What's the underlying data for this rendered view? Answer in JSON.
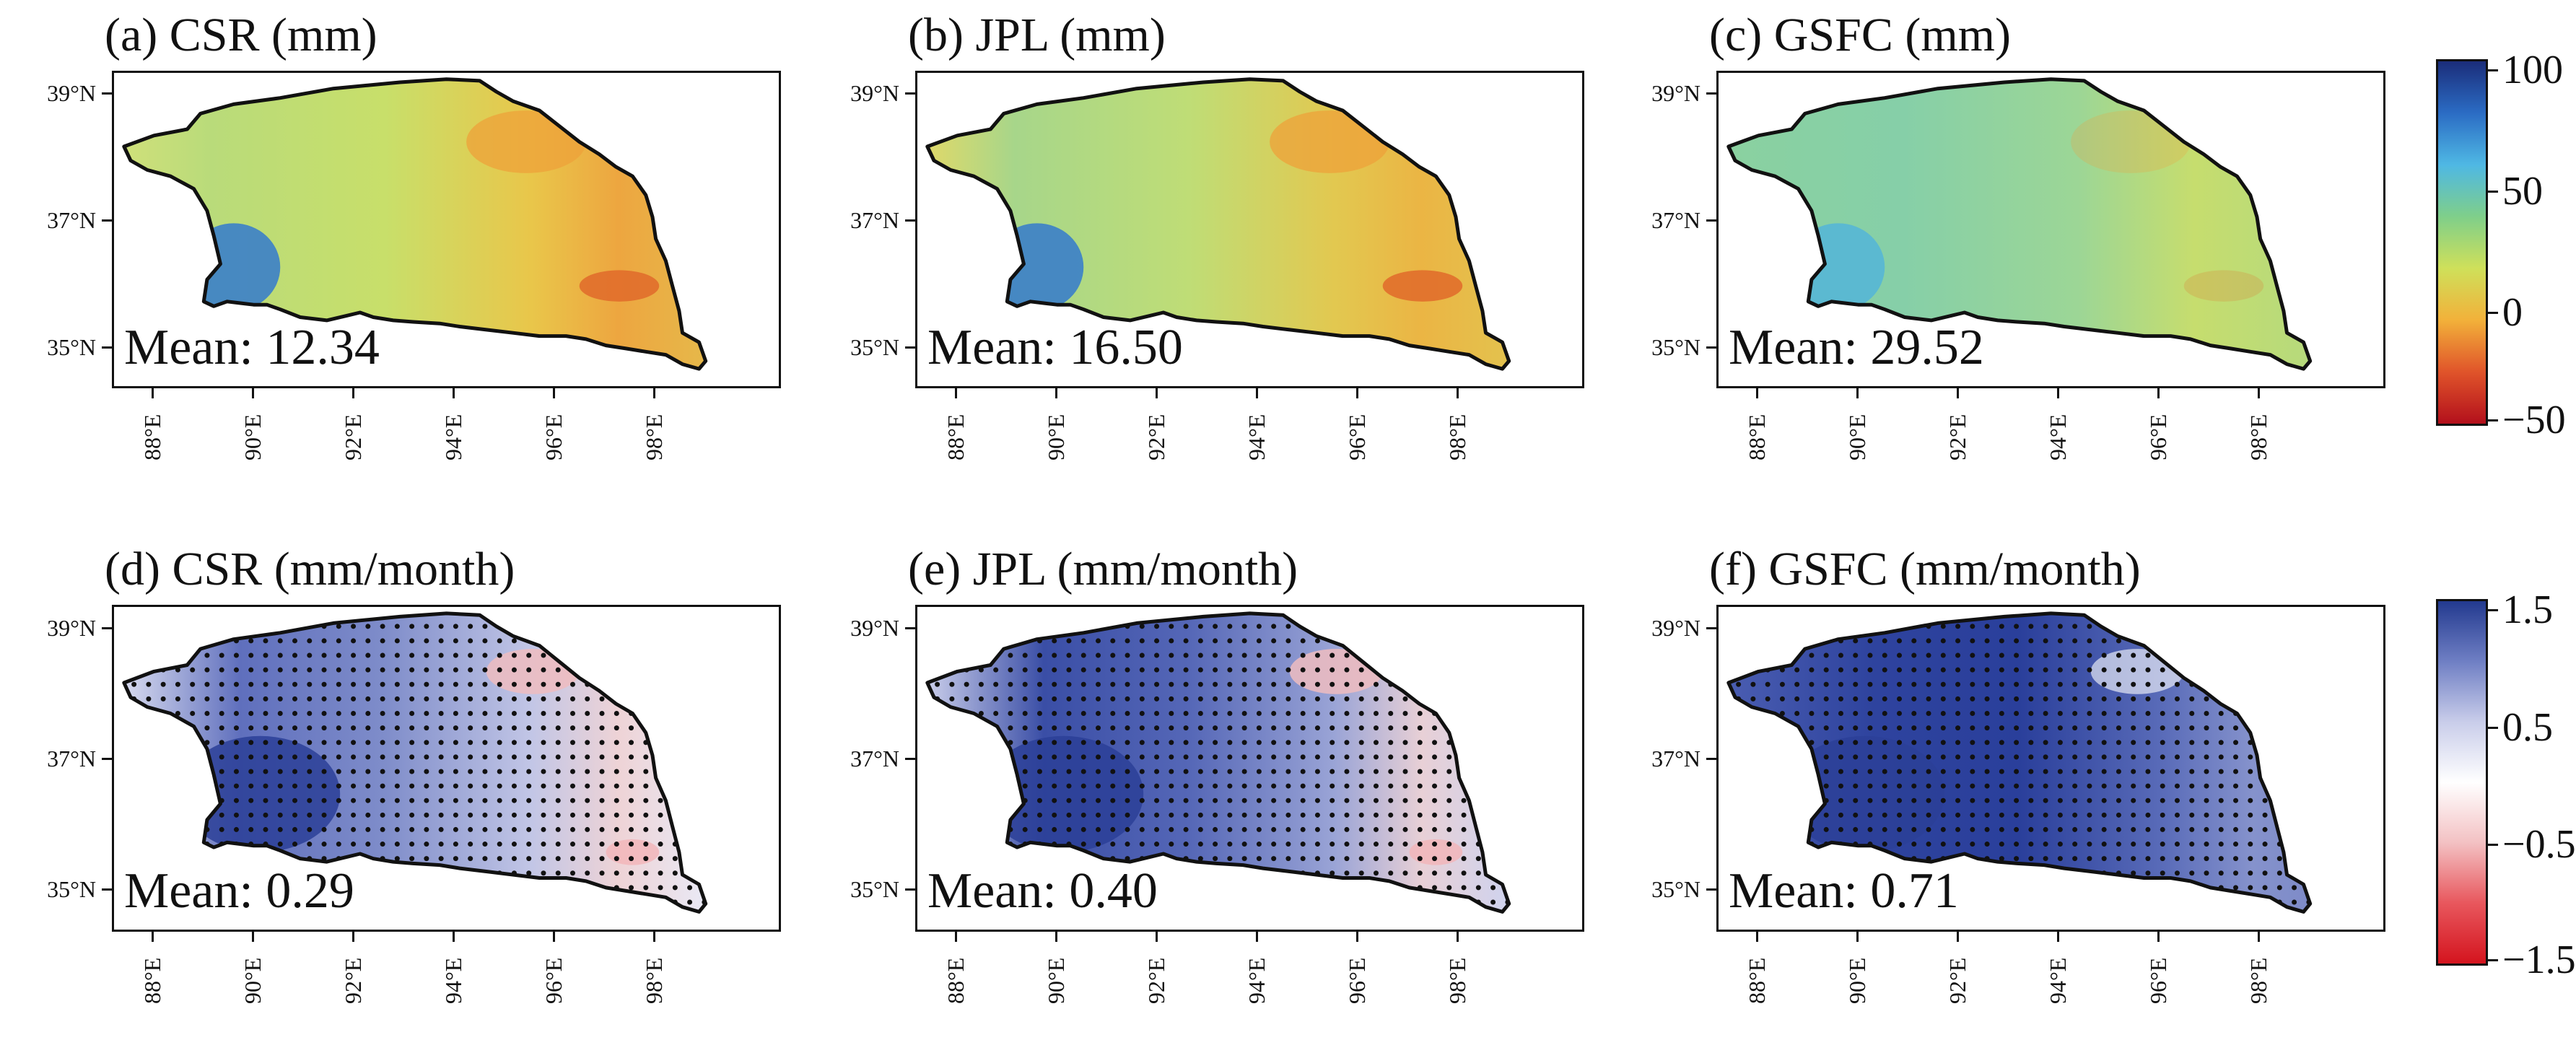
{
  "panels": [
    {
      "title": "(a) CSR (mm)",
      "mean": "Mean: 12.34",
      "kind": "amp"
    },
    {
      "title": "(b) JPL (mm)",
      "mean": "Mean: 16.50",
      "kind": "amp"
    },
    {
      "title": "(c) GSFC (mm)",
      "mean": "Mean: 29.52",
      "kind": "amp"
    },
    {
      "title": "(d) CSR (mm/month)",
      "mean": "Mean: 0.29",
      "kind": "trend"
    },
    {
      "title": "(e) JPL (mm/month)",
      "mean": "Mean: 0.40",
      "kind": "trend"
    },
    {
      "title": "(f) GSFC (mm/month)",
      "mean": "Mean: 0.71",
      "kind": "trend"
    }
  ],
  "axes": {
    "y_labels": [
      "39°N",
      "37°N",
      "35°N"
    ],
    "x_labels": [
      "88°E",
      "90°E",
      "92°E",
      "94°E",
      "96°E",
      "98°E"
    ]
  },
  "colorbars": {
    "top": {
      "labels": [
        "100",
        "50",
        "0",
        "−50"
      ],
      "colors": [
        "#1b2d7a",
        "#2b6cc4",
        "#4fb8e4",
        "#7fcf8a",
        "#cfe05a",
        "#f2b13a",
        "#e0542a",
        "#b3101c"
      ]
    },
    "bottom": {
      "labels": [
        "1.5",
        "0.5",
        "−0.5",
        "−1.5"
      ],
      "colors": [
        "#233a8f",
        "#6f7fc4",
        "#c9cdea",
        "#ffffff",
        "#f3c1c3",
        "#e8575d",
        "#d4141e"
      ]
    }
  }
}
